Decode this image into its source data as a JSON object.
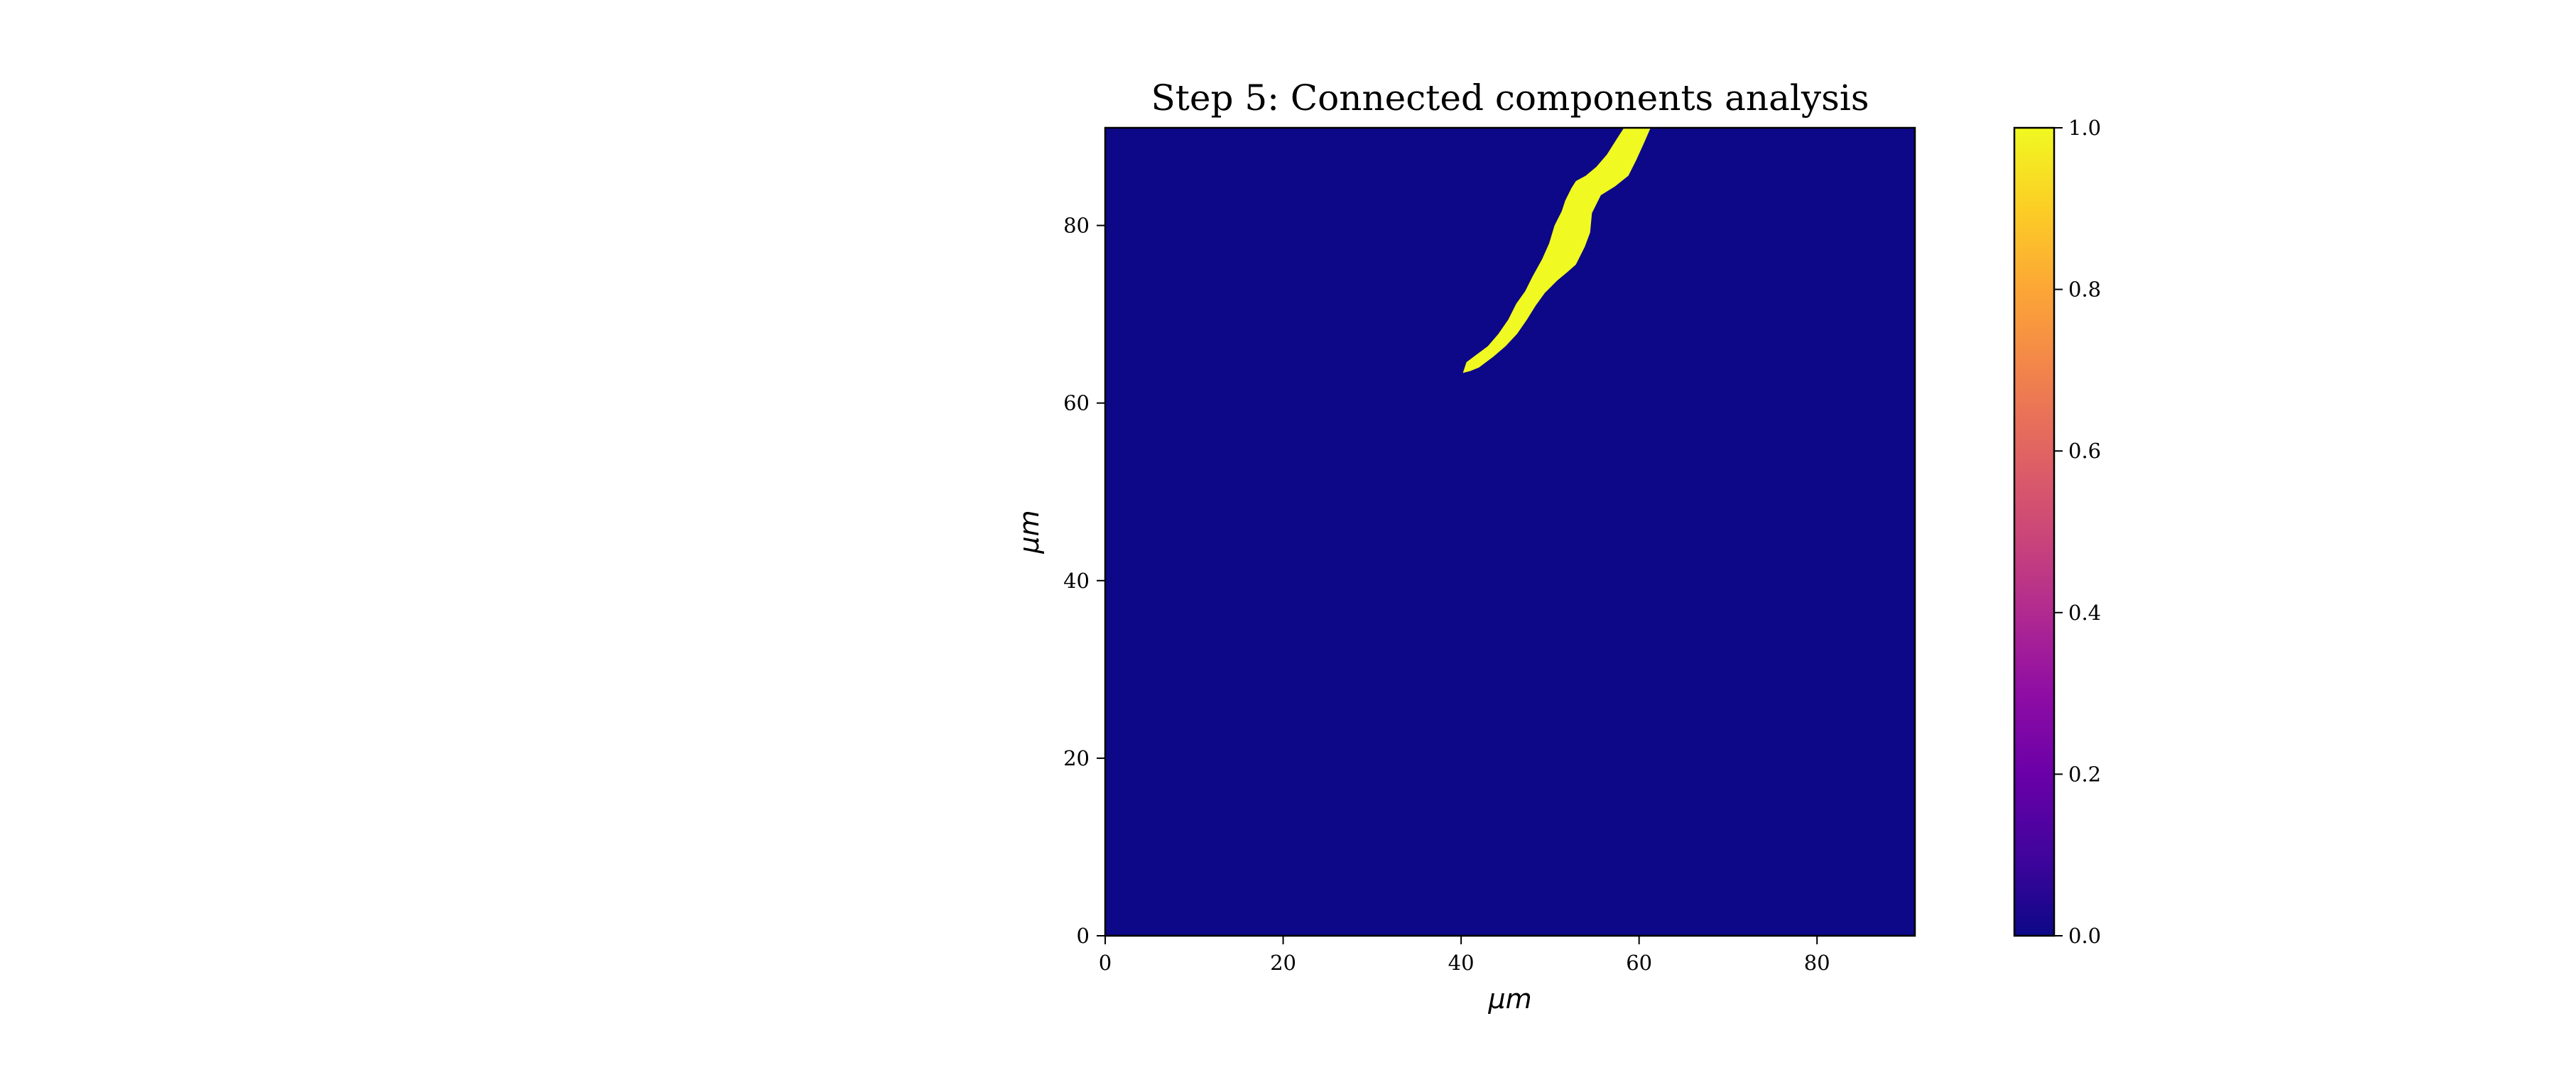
{
  "chart_data": {
    "type": "heatmap",
    "title": "Step 5: Connected components analysis",
    "xlabel": "μm",
    "ylabel": "μm",
    "xlim": [
      0,
      91
    ],
    "ylim": [
      0,
      91
    ],
    "xticks": [
      0,
      20,
      40,
      60,
      80
    ],
    "yticks": [
      0,
      20,
      40,
      60,
      80
    ],
    "colormap": "plasma",
    "background_value": 0,
    "colorbar": {
      "range": [
        0.0,
        1.0
      ],
      "ticks": [
        "0.0",
        "0.2",
        "0.4",
        "0.6",
        "0.8",
        "1.0"
      ]
    },
    "components": [
      {
        "value": 1,
        "outline": [
          [
            40.2,
            63.4
          ],
          [
            40.6,
            64.6
          ],
          [
            41.8,
            65.5
          ],
          [
            43.0,
            66.4
          ],
          [
            44.2,
            67.8
          ],
          [
            45.3,
            69.4
          ],
          [
            46.2,
            71.2
          ],
          [
            47.2,
            72.6
          ],
          [
            48.0,
            74.2
          ],
          [
            49.1,
            76.2
          ],
          [
            49.9,
            78.0
          ],
          [
            50.5,
            80.0
          ],
          [
            51.3,
            81.6
          ],
          [
            51.7,
            82.8
          ],
          [
            52.4,
            84.2
          ],
          [
            52.9,
            85.0
          ],
          [
            54.0,
            85.6
          ],
          [
            55.2,
            86.6
          ],
          [
            56.4,
            88.0
          ],
          [
            57.4,
            89.6
          ],
          [
            58.3,
            91.0
          ],
          [
            61.3,
            91.0
          ],
          [
            60.6,
            89.4
          ],
          [
            59.7,
            87.4
          ],
          [
            58.8,
            85.6
          ],
          [
            57.3,
            84.4
          ],
          [
            55.7,
            83.4
          ],
          [
            54.7,
            81.4
          ],
          [
            54.5,
            79.2
          ],
          [
            53.9,
            77.6
          ],
          [
            52.9,
            75.6
          ],
          [
            52.0,
            74.8
          ],
          [
            50.8,
            73.8
          ],
          [
            49.4,
            72.4
          ],
          [
            48.4,
            71.0
          ],
          [
            47.4,
            69.4
          ],
          [
            46.3,
            67.8
          ],
          [
            45.0,
            66.4
          ],
          [
            43.6,
            65.2
          ],
          [
            42.0,
            64.0
          ],
          [
            41.0,
            63.6
          ]
        ]
      }
    ]
  },
  "colors": {
    "background": "#0d0887",
    "component": "#f0f921"
  }
}
